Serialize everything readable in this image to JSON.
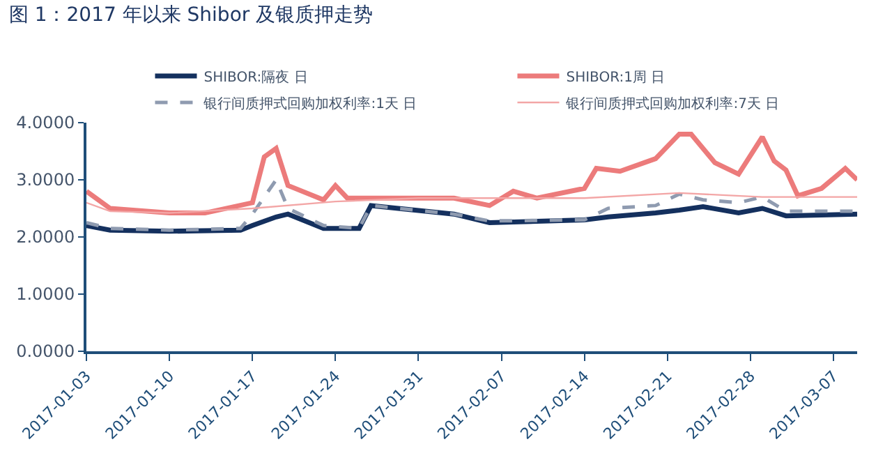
{
  "chart_data": {
    "type": "line",
    "title": "图 1：2017 年以来 Shibor 及银质押走势",
    "xlim": [
      "2017-01-03",
      "2017-03-09"
    ],
    "xticks": [
      "2017-01-03",
      "2017-01-10",
      "2017-01-17",
      "2017-01-24",
      "2017-01-31",
      "2017-02-07",
      "2017-02-14",
      "2017-02-21",
      "2017-02-28",
      "2017-03-07"
    ],
    "ylim": [
      0,
      4
    ],
    "yticks": [
      {
        "value": 0,
        "label": "0.0000"
      },
      {
        "value": 1,
        "label": "1.0000"
      },
      {
        "value": 2,
        "label": "2.0000"
      },
      {
        "value": 3,
        "label": "3.0000"
      },
      {
        "value": 4,
        "label": "4.0000"
      }
    ],
    "legend": "top",
    "marker": "none",
    "series": [
      {
        "name": "SHIBOR:隔夜 日",
        "color": "#14305e",
        "line_style": "solid",
        "x": [
          "2017-01-03",
          "2017-01-05",
          "2017-01-10",
          "2017-01-16",
          "2017-01-17",
          "2017-01-19",
          "2017-01-20",
          "2017-01-23",
          "2017-01-26",
          "2017-01-27",
          "2017-02-03",
          "2017-02-06",
          "2017-02-14",
          "2017-02-16",
          "2017-02-20",
          "2017-02-22",
          "2017-02-24",
          "2017-02-27",
          "2017-03-01",
          "2017-03-03",
          "2017-03-09"
        ],
        "values": [
          2.2,
          2.12,
          2.1,
          2.12,
          2.2,
          2.35,
          2.4,
          2.15,
          2.15,
          2.55,
          2.4,
          2.25,
          2.3,
          2.35,
          2.42,
          2.47,
          2.53,
          2.42,
          2.5,
          2.37,
          2.4
        ]
      },
      {
        "name": "SHIBOR:1周 日",
        "color": "#ec7b7b",
        "line_style": "solid",
        "x": [
          "2017-01-03",
          "2017-01-05",
          "2017-01-10",
          "2017-01-13",
          "2017-01-17",
          "2017-01-18",
          "2017-01-19",
          "2017-01-20",
          "2017-01-23",
          "2017-01-24",
          "2017-01-25",
          "2017-01-31",
          "2017-02-03",
          "2017-02-06",
          "2017-02-08",
          "2017-02-10",
          "2017-02-14",
          "2017-02-15",
          "2017-02-17",
          "2017-02-20",
          "2017-02-22",
          "2017-02-23",
          "2017-02-25",
          "2017-02-27",
          "2017-03-01",
          "2017-03-02",
          "2017-03-03",
          "2017-03-04",
          "2017-03-06",
          "2017-03-08",
          "2017-03-09"
        ],
        "values": [
          2.8,
          2.5,
          2.42,
          2.42,
          2.6,
          3.4,
          3.55,
          2.9,
          2.65,
          2.9,
          2.68,
          2.68,
          2.68,
          2.55,
          2.8,
          2.68,
          2.85,
          3.2,
          3.15,
          3.37,
          3.8,
          3.8,
          3.3,
          3.1,
          3.75,
          3.33,
          3.17,
          2.72,
          2.85,
          3.2,
          3.0
        ]
      },
      {
        "name": "银行间质押式回购加权利率:1天 日",
        "color": "#8f9bb0",
        "line_style": "dashed",
        "x": [
          "2017-01-03",
          "2017-01-05",
          "2017-01-10",
          "2017-01-16",
          "2017-01-17",
          "2017-01-19",
          "2017-01-20",
          "2017-01-23",
          "2017-01-26",
          "2017-01-27",
          "2017-02-03",
          "2017-02-06",
          "2017-02-14",
          "2017-02-16",
          "2017-02-20",
          "2017-02-22",
          "2017-02-24",
          "2017-02-27",
          "2017-03-01",
          "2017-03-03",
          "2017-03-09"
        ],
        "values": [
          2.25,
          2.15,
          2.12,
          2.15,
          2.4,
          3.0,
          2.5,
          2.2,
          2.15,
          2.55,
          2.4,
          2.28,
          2.3,
          2.5,
          2.55,
          2.75,
          2.65,
          2.6,
          2.7,
          2.45,
          2.45
        ]
      },
      {
        "name": "银行间质押式回购加权利率:7天 日",
        "color": "#f3a6a6",
        "line_style": "solid",
        "x": [
          "2017-01-03",
          "2017-01-05",
          "2017-01-10",
          "2017-01-17",
          "2017-01-24",
          "2017-01-31",
          "2017-02-14",
          "2017-02-22",
          "2017-03-01",
          "2017-03-09"
        ],
        "values": [
          2.6,
          2.45,
          2.42,
          2.5,
          2.62,
          2.68,
          2.68,
          2.77,
          2.7,
          2.7
        ]
      }
    ]
  }
}
